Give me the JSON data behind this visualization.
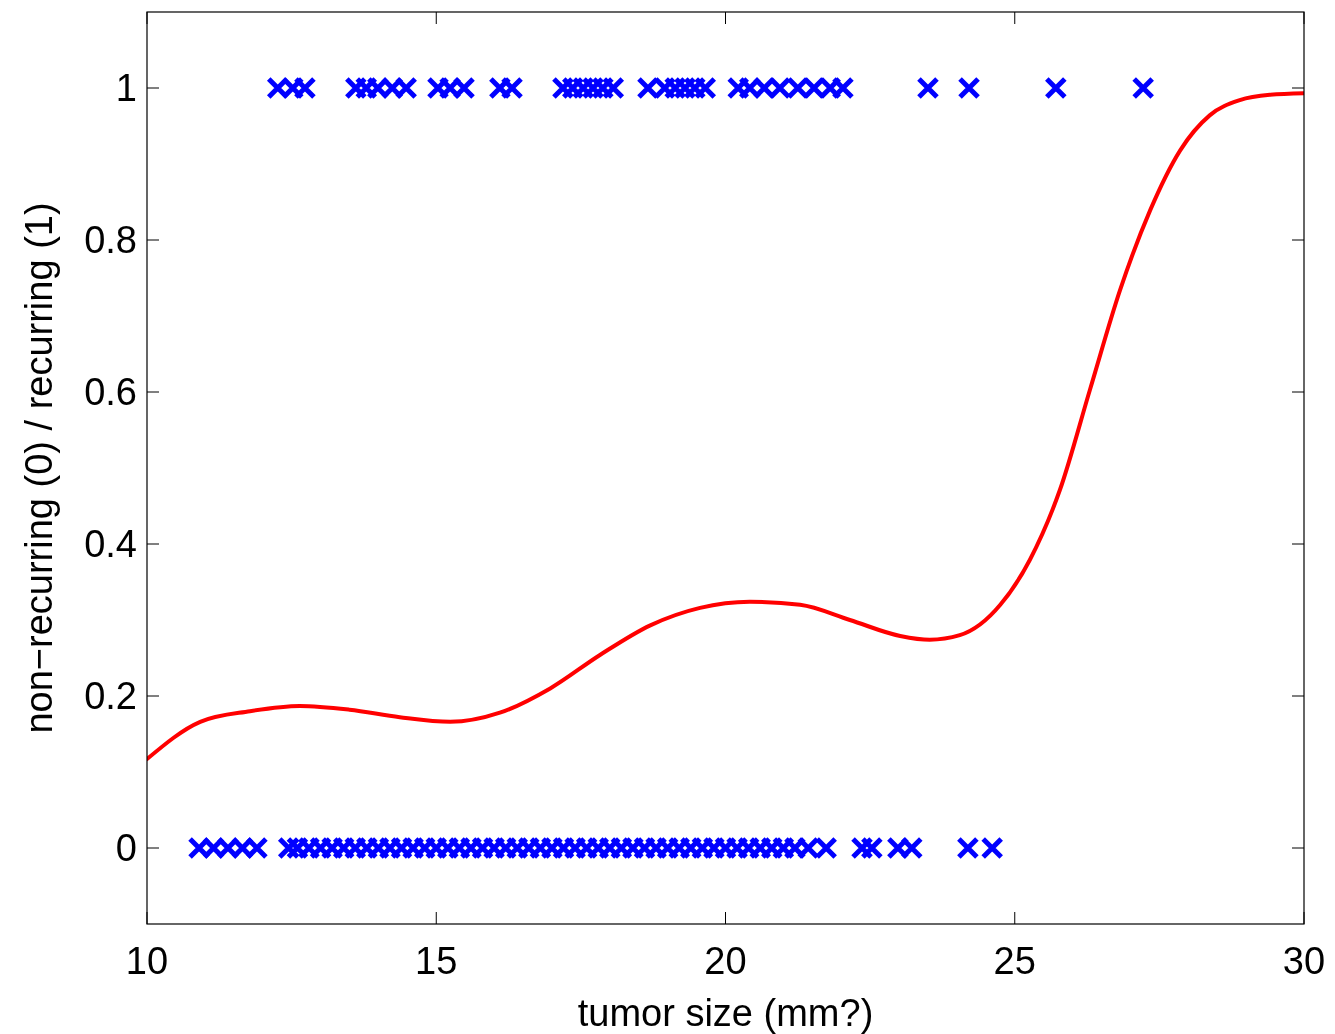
{
  "chart_data": {
    "type": "scatter",
    "xlabel": "tumor size (mm?)",
    "ylabel": "non−recurring (0) / recurring (1)",
    "xlim": [
      10,
      30
    ],
    "ylim": [
      -0.1,
      1.1
    ],
    "xticks": [
      10,
      15,
      20,
      25,
      30
    ],
    "yticks": [
      0,
      0.2,
      0.4,
      0.6,
      0.8,
      1
    ],
    "grid": false,
    "series": [
      {
        "color": "#0000ff",
        "marker": "cross",
        "x": [
          12.26,
          12.52,
          12.73,
          13.61,
          13.79,
          13.99,
          14.24,
          14.48,
          15.03,
          15.24,
          15.48,
          16.1,
          16.31,
          17.19,
          17.36,
          17.54,
          17.71,
          17.88,
          18.06,
          18.66,
          18.95,
          19.13,
          19.3,
          19.47,
          19.65,
          20.22,
          20.42,
          20.67,
          20.94,
          21.25,
          21.53,
          21.81,
          22.03,
          23.5,
          24.21,
          25.71,
          27.22
        ],
        "values": [
          1,
          1,
          1,
          1,
          1,
          1,
          1,
          1,
          1,
          1,
          1,
          1,
          1,
          1,
          1,
          1,
          1,
          1,
          1,
          1,
          1,
          1,
          1,
          1,
          1,
          1,
          1,
          1,
          1,
          1,
          1,
          1,
          1,
          1,
          1,
          1,
          1
        ]
      },
      {
        "color": "#0000ff",
        "marker": "cross",
        "x": [
          10.9,
          11.15,
          11.4,
          11.65,
          11.9,
          12.45,
          12.6,
          12.8,
          13.0,
          13.2,
          13.4,
          13.6,
          13.8,
          14.0,
          14.2,
          14.4,
          14.6,
          14.8,
          15.0,
          15.2,
          15.4,
          15.6,
          15.8,
          16.0,
          16.2,
          16.4,
          16.6,
          16.8,
          17.0,
          17.2,
          17.4,
          17.6,
          17.8,
          18.0,
          18.2,
          18.4,
          18.6,
          18.8,
          19.0,
          19.2,
          19.4,
          19.6,
          19.8,
          20.0,
          20.2,
          20.4,
          20.6,
          20.8,
          21.0,
          21.2,
          21.43,
          21.74,
          22.36,
          22.53,
          22.98,
          23.22,
          24.19,
          24.61
        ],
        "values": [
          0,
          0,
          0,
          0,
          0,
          0,
          0,
          0,
          0,
          0,
          0,
          0,
          0,
          0,
          0,
          0,
          0,
          0,
          0,
          0,
          0,
          0,
          0,
          0,
          0,
          0,
          0,
          0,
          0,
          0,
          0,
          0,
          0,
          0,
          0,
          0,
          0,
          0,
          0,
          0,
          0,
          0,
          0,
          0,
          0,
          0,
          0,
          0,
          0,
          0,
          0,
          0,
          0,
          0,
          0,
          0,
          0,
          0
        ]
      },
      {
        "type": "line",
        "color": "#ff0000",
        "line_style": "solid",
        "marker": "none",
        "x": [
          10,
          10.92,
          11.78,
          12.64,
          13.5,
          14.37,
          15.24,
          16.1,
          16.97,
          17.83,
          18.7,
          19.56,
          20.42,
          21.29,
          22.15,
          23.02,
          23.53,
          24.05,
          24.75,
          25.26,
          25.78,
          26.3,
          26.82,
          27.34,
          27.86,
          28.37,
          28.89,
          29.41,
          30
        ],
        "values": [
          0.117,
          0.166,
          0.18,
          0.187,
          0.182,
          0.172,
          0.166,
          0.178,
          0.21,
          0.254,
          0.293,
          0.316,
          0.324,
          0.32,
          0.3,
          0.279,
          0.274,
          0.28,
          0.32,
          0.379,
          0.471,
          0.603,
          0.734,
          0.839,
          0.918,
          0.964,
          0.984,
          0.991,
          0.993
        ]
      }
    ]
  }
}
